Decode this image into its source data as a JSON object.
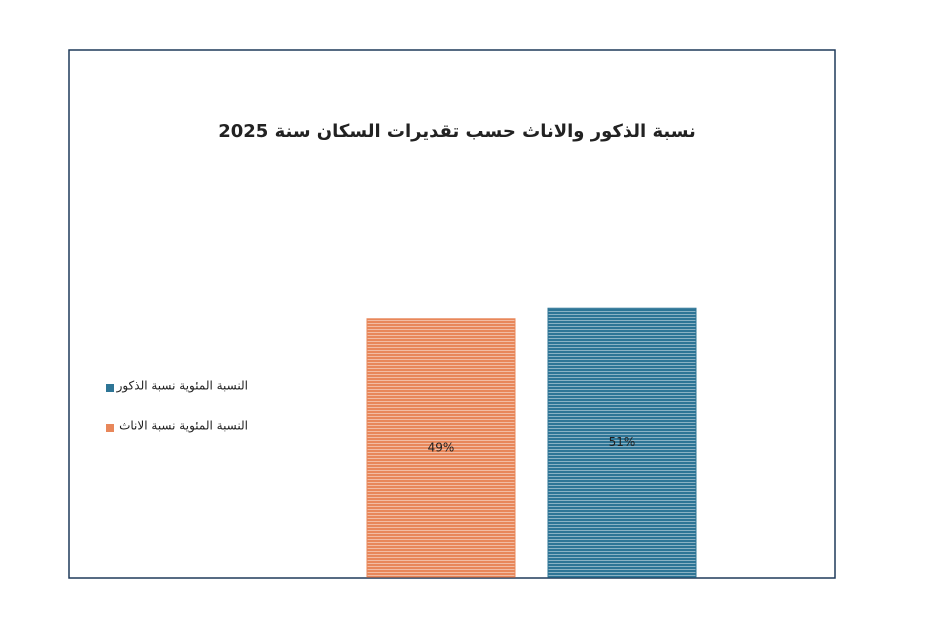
{
  "chart_data": {
    "type": "bar",
    "title": "نسبة الذكور والاناث حسب تقديرات السكان سنة 2025",
    "categories": [
      null
    ],
    "series": [
      {
        "name": "النسبة المئوية  نسبة الذكور",
        "color": "#2e7596",
        "values": [
          51
        ],
        "value_labels": [
          "51%"
        ]
      },
      {
        "name": "النسبة المئوية  نسبة الاناث",
        "color": "#e8875a",
        "values": [
          49
        ],
        "value_labels": [
          "49%"
        ]
      }
    ],
    "ylim": [
      0,
      100
    ],
    "legend": "left"
  }
}
